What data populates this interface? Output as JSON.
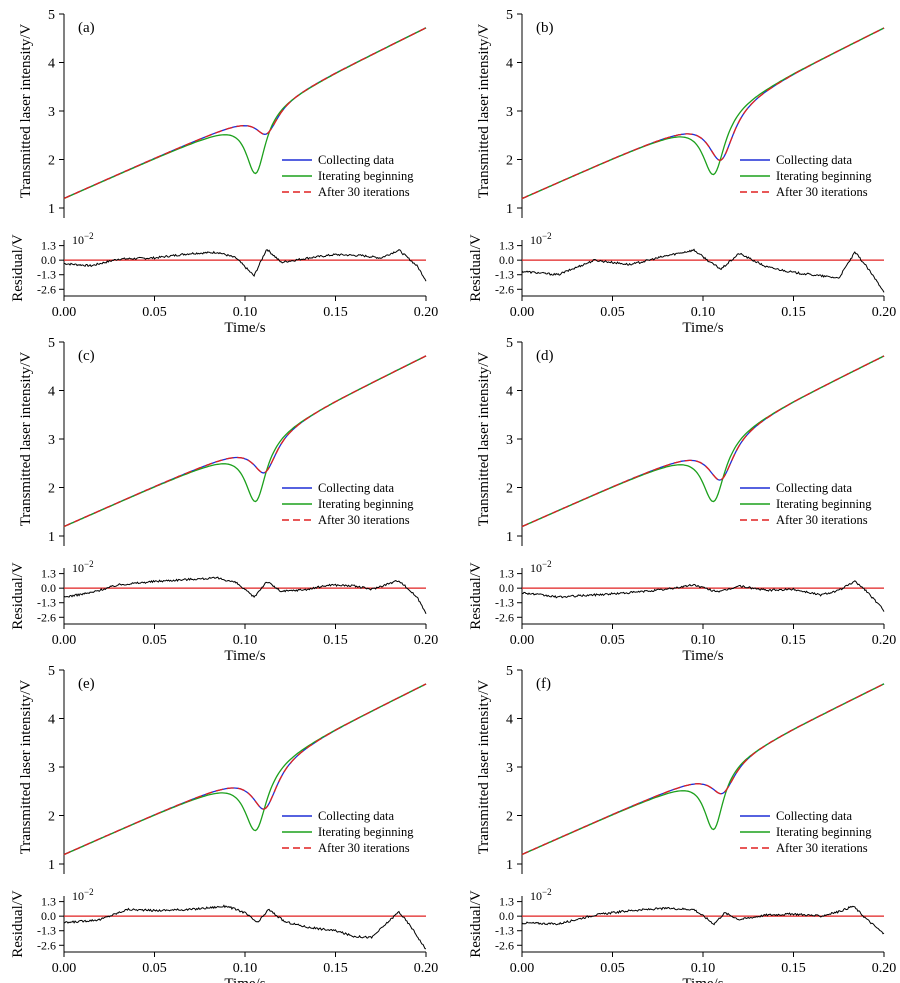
{
  "figure": {
    "common": {
      "ylabel_main": "Transmitted laser intensity/V",
      "ylabel_residual": "Residual/V",
      "xlabel": "Time/s",
      "residual_scale": "10",
      "residual_scale_exp": "−2",
      "x_ticks": [
        "0.00",
        "0.05",
        "0.10",
        "0.15",
        "0.20"
      ],
      "y_ticks_main": [
        "1",
        "2",
        "3",
        "4",
        "5"
      ],
      "y_ticks_residual": [
        "1.3",
        "0.0",
        "-1.3",
        "-2.6"
      ],
      "legend": [
        {
          "label": "Collecting data",
          "color": "#1f2fd6",
          "dash": "solid"
        },
        {
          "label": "Iterating beginning",
          "color": "#1ca01c",
          "dash": "solid"
        },
        {
          "label": "After 30 iterations",
          "color": "#e02020",
          "dash": "dashed"
        }
      ]
    },
    "panels": [
      {
        "label": "(a)"
      },
      {
        "label": "(b)"
      },
      {
        "label": "(c)"
      },
      {
        "label": "(d)"
      },
      {
        "label": "(e)"
      },
      {
        "label": "(f)"
      }
    ]
  },
  "chart_data": [
    {
      "type": "line",
      "panel": "(a)",
      "xlim": [
        0,
        0.2
      ],
      "ylim": [
        1,
        5
      ],
      "residual_ylim": [
        -3.2,
        1.8
      ],
      "grid": false,
      "legend_position": "center-right",
      "baseline": [
        [
          0.0,
          1.2
        ],
        [
          0.05,
          2.03
        ],
        [
          0.1,
          2.85
        ],
        [
          0.15,
          3.8
        ],
        [
          0.2,
          4.72
        ]
      ],
      "series": [
        {
          "name": "Collecting data",
          "dip_center": 0.112,
          "dip_depth": 0.55,
          "dip_width": 0.0075,
          "dip_center_value": 2.42
        },
        {
          "name": "Iterating beginning",
          "dip_center": 0.106,
          "dip_depth": 1.25,
          "dip_width": 0.0065,
          "dip_center_value": 1.58
        },
        {
          "name": "After 30 iterations",
          "dip_center": 0.112,
          "dip_depth": 0.55,
          "dip_width": 0.0075,
          "dip_center_value": 2.42
        }
      ],
      "residual": [
        [
          0,
          -0.3
        ],
        [
          0.015,
          -0.5
        ],
        [
          0.03,
          0.1
        ],
        [
          0.05,
          0.2
        ],
        [
          0.07,
          0.6
        ],
        [
          0.085,
          0.7
        ],
        [
          0.095,
          0.2
        ],
        [
          0.105,
          -1.4
        ],
        [
          0.112,
          1.0
        ],
        [
          0.12,
          -0.2
        ],
        [
          0.135,
          0.2
        ],
        [
          0.15,
          0.5
        ],
        [
          0.165,
          0.4
        ],
        [
          0.175,
          0.2
        ],
        [
          0.185,
          0.9
        ],
        [
          0.195,
          -0.5
        ],
        [
          0.2,
          -1.8
        ]
      ]
    },
    {
      "type": "line",
      "panel": "(b)",
      "xlim": [
        0,
        0.2
      ],
      "ylim": [
        1,
        5
      ],
      "residual_ylim": [
        -3.2,
        1.8
      ],
      "grid": false,
      "legend_position": "center-right",
      "baseline": [
        [
          0.0,
          1.2
        ],
        [
          0.05,
          2.03
        ],
        [
          0.1,
          2.85
        ],
        [
          0.15,
          3.8
        ],
        [
          0.2,
          4.72
        ]
      ],
      "series": [
        {
          "name": "Collecting data",
          "dip_center": 0.11,
          "dip_depth": 1.05,
          "dip_width": 0.0085,
          "dip_center_value": 1.77
        },
        {
          "name": "Iterating beginning",
          "dip_center": 0.106,
          "dip_depth": 1.27,
          "dip_width": 0.0075,
          "dip_center_value": 1.58
        },
        {
          "name": "After 30 iterations",
          "dip_center": 0.11,
          "dip_depth": 1.05,
          "dip_width": 0.0085,
          "dip_center_value": 1.77
        }
      ],
      "residual": [
        [
          0,
          -1.0
        ],
        [
          0.02,
          -1.3
        ],
        [
          0.04,
          0.0
        ],
        [
          0.06,
          -0.4
        ],
        [
          0.08,
          0.4
        ],
        [
          0.095,
          0.9
        ],
        [
          0.105,
          -0.3
        ],
        [
          0.11,
          -0.8
        ],
        [
          0.12,
          0.6
        ],
        [
          0.135,
          -0.6
        ],
        [
          0.15,
          -1.1
        ],
        [
          0.165,
          -1.4
        ],
        [
          0.175,
          -1.6
        ],
        [
          0.184,
          0.7
        ],
        [
          0.19,
          -0.5
        ],
        [
          0.2,
          -2.8
        ]
      ]
    },
    {
      "type": "line",
      "panel": "(c)",
      "xlim": [
        0,
        0.2
      ],
      "ylim": [
        1,
        5
      ],
      "residual_ylim": [
        -3.2,
        1.8
      ],
      "grid": false,
      "legend_position": "center-right",
      "baseline": [
        [
          0.0,
          1.2
        ],
        [
          0.05,
          2.03
        ],
        [
          0.1,
          2.85
        ],
        [
          0.15,
          3.8
        ],
        [
          0.2,
          4.72
        ]
      ],
      "series": [
        {
          "name": "Collecting data",
          "dip_center": 0.111,
          "dip_depth": 0.75,
          "dip_width": 0.008,
          "dip_center_value": 2.12
        },
        {
          "name": "Iterating beginning",
          "dip_center": 0.106,
          "dip_depth": 1.25,
          "dip_width": 0.007,
          "dip_center_value": 1.62
        },
        {
          "name": "After 30 iterations",
          "dip_center": 0.111,
          "dip_depth": 0.75,
          "dip_width": 0.008,
          "dip_center_value": 2.12
        }
      ],
      "residual": [
        [
          0,
          -0.8
        ],
        [
          0.015,
          -0.4
        ],
        [
          0.03,
          0.3
        ],
        [
          0.05,
          0.6
        ],
        [
          0.07,
          0.8
        ],
        [
          0.085,
          0.9
        ],
        [
          0.095,
          0.5
        ],
        [
          0.105,
          -0.8
        ],
        [
          0.112,
          0.6
        ],
        [
          0.12,
          -0.3
        ],
        [
          0.135,
          -0.1
        ],
        [
          0.147,
          0.3
        ],
        [
          0.16,
          0.2
        ],
        [
          0.17,
          -0.1
        ],
        [
          0.185,
          0.7
        ],
        [
          0.195,
          -0.8
        ],
        [
          0.2,
          -2.2
        ]
      ]
    },
    {
      "type": "line",
      "panel": "(d)",
      "xlim": [
        0,
        0.2
      ],
      "ylim": [
        1,
        5
      ],
      "residual_ylim": [
        -3.2,
        1.8
      ],
      "grid": false,
      "legend_position": "center-right",
      "baseline": [
        [
          0.0,
          1.2
        ],
        [
          0.05,
          2.03
        ],
        [
          0.1,
          2.85
        ],
        [
          0.15,
          3.8
        ],
        [
          0.2,
          4.72
        ]
      ],
      "series": [
        {
          "name": "Collecting data",
          "dip_center": 0.11,
          "dip_depth": 0.88,
          "dip_width": 0.0085,
          "dip_center_value": 1.97
        },
        {
          "name": "Iterating beginning",
          "dip_center": 0.106,
          "dip_depth": 1.25,
          "dip_width": 0.0075,
          "dip_center_value": 1.6
        },
        {
          "name": "After 30 iterations",
          "dip_center": 0.11,
          "dip_depth": 0.88,
          "dip_width": 0.0085,
          "dip_center_value": 1.97
        }
      ],
      "residual": [
        [
          0,
          -0.4
        ],
        [
          0.02,
          -0.8
        ],
        [
          0.04,
          -0.6
        ],
        [
          0.06,
          -0.4
        ],
        [
          0.08,
          -0.1
        ],
        [
          0.095,
          0.3
        ],
        [
          0.105,
          -0.2
        ],
        [
          0.11,
          -0.3
        ],
        [
          0.12,
          0.2
        ],
        [
          0.135,
          -0.2
        ],
        [
          0.15,
          -0.1
        ],
        [
          0.165,
          -0.6
        ],
        [
          0.175,
          -0.2
        ],
        [
          0.184,
          0.6
        ],
        [
          0.19,
          -0.2
        ],
        [
          0.2,
          -2.0
        ]
      ]
    },
    {
      "type": "line",
      "panel": "(e)",
      "xlim": [
        0,
        0.2
      ],
      "ylim": [
        1,
        5
      ],
      "residual_ylim": [
        -3.2,
        1.8
      ],
      "grid": false,
      "legend_position": "center-right",
      "baseline": [
        [
          0.0,
          1.2
        ],
        [
          0.05,
          2.03
        ],
        [
          0.1,
          2.85
        ],
        [
          0.15,
          3.8
        ],
        [
          0.2,
          4.72
        ]
      ],
      "series": [
        {
          "name": "Collecting data",
          "dip_center": 0.111,
          "dip_depth": 0.92,
          "dip_width": 0.0085,
          "dip_center_value": 1.92
        },
        {
          "name": "Iterating beginning",
          "dip_center": 0.106,
          "dip_depth": 1.27,
          "dip_width": 0.0075,
          "dip_center_value": 1.58
        },
        {
          "name": "After 30 iterations",
          "dip_center": 0.111,
          "dip_depth": 0.92,
          "dip_width": 0.0085,
          "dip_center_value": 1.92
        }
      ],
      "residual": [
        [
          0,
          -0.6
        ],
        [
          0.02,
          -0.3
        ],
        [
          0.035,
          0.6
        ],
        [
          0.05,
          0.5
        ],
        [
          0.07,
          0.6
        ],
        [
          0.09,
          0.9
        ],
        [
          0.1,
          0.3
        ],
        [
          0.107,
          -0.6
        ],
        [
          0.113,
          0.6
        ],
        [
          0.122,
          -0.5
        ],
        [
          0.135,
          -1.0
        ],
        [
          0.15,
          -1.3
        ],
        [
          0.16,
          -1.8
        ],
        [
          0.17,
          -1.9
        ],
        [
          0.185,
          0.4
        ],
        [
          0.192,
          -1.0
        ],
        [
          0.2,
          -3.0
        ]
      ]
    },
    {
      "type": "line",
      "panel": "(f)",
      "xlim": [
        0,
        0.2
      ],
      "ylim": [
        1,
        5
      ],
      "residual_ylim": [
        -3.2,
        1.8
      ],
      "grid": false,
      "legend_position": "center-right",
      "baseline": [
        [
          0.0,
          1.2
        ],
        [
          0.05,
          2.03
        ],
        [
          0.1,
          2.85
        ],
        [
          0.15,
          3.8
        ],
        [
          0.2,
          4.72
        ]
      ],
      "series": [
        {
          "name": "Collecting data",
          "dip_center": 0.111,
          "dip_depth": 0.6,
          "dip_width": 0.008,
          "dip_center_value": 2.22
        },
        {
          "name": "Iterating beginning",
          "dip_center": 0.106,
          "dip_depth": 1.25,
          "dip_width": 0.0065,
          "dip_center_value": 1.58
        },
        {
          "name": "After 30 iterations",
          "dip_center": 0.111,
          "dip_depth": 0.6,
          "dip_width": 0.008,
          "dip_center_value": 2.22
        }
      ],
      "residual": [
        [
          0,
          -0.6
        ],
        [
          0.02,
          -0.7
        ],
        [
          0.04,
          0.1
        ],
        [
          0.06,
          0.5
        ],
        [
          0.08,
          0.7
        ],
        [
          0.095,
          0.6
        ],
        [
          0.102,
          -0.2
        ],
        [
          0.106,
          -0.7
        ],
        [
          0.112,
          0.3
        ],
        [
          0.12,
          -0.3
        ],
        [
          0.135,
          0.1
        ],
        [
          0.15,
          0.2
        ],
        [
          0.165,
          0.0
        ],
        [
          0.175,
          0.4
        ],
        [
          0.183,
          0.9
        ],
        [
          0.19,
          -0.2
        ],
        [
          0.2,
          -1.6
        ]
      ]
    }
  ]
}
